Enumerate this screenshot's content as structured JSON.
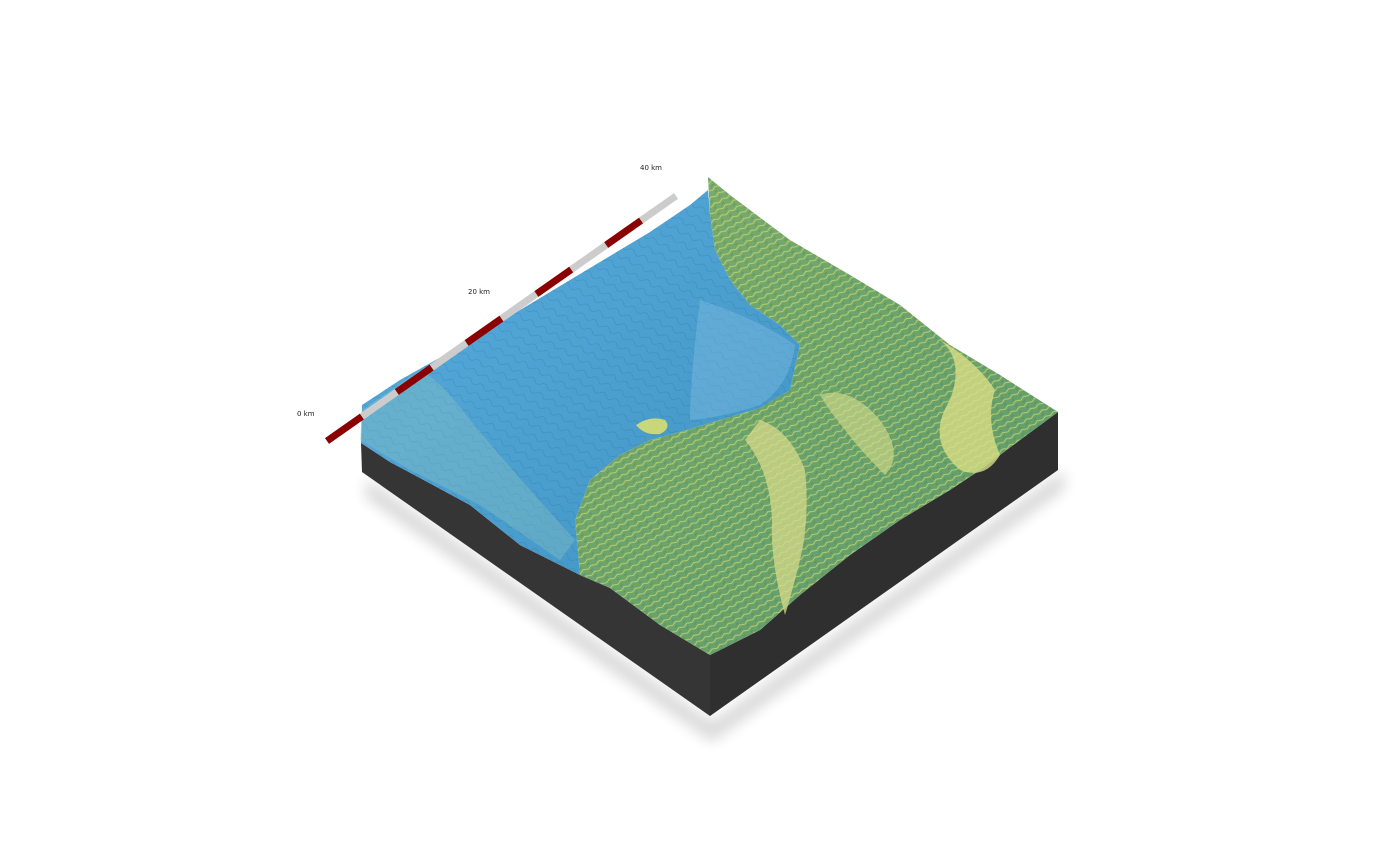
{
  "view": {
    "kind": "3D rendered terrain block",
    "projection": "isometric",
    "base_color": "#333333",
    "water_color": "#4a9fd6",
    "land_colors": [
      "#5f9a6c",
      "#7fae6b",
      "#c9d67a",
      "#e8e46a"
    ]
  },
  "scale_bar": {
    "labels": [
      "0 km",
      "20 km",
      "40 km"
    ],
    "colors": [
      "#8b0000",
      "#cccccc"
    ],
    "segments": 10
  }
}
